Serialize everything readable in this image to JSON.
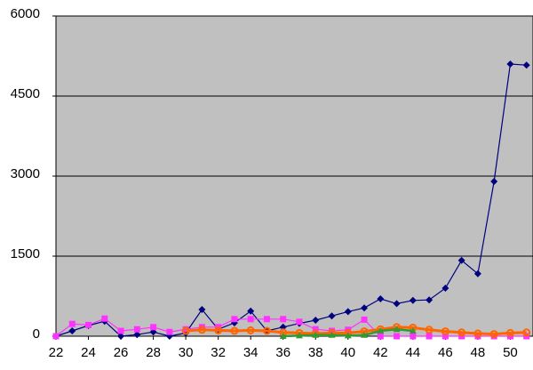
{
  "chart_data": {
    "type": "line",
    "x": [
      22,
      23,
      24,
      25,
      26,
      27,
      28,
      29,
      30,
      31,
      32,
      33,
      34,
      35,
      36,
      37,
      38,
      39,
      40,
      41,
      42,
      43,
      44,
      45,
      46,
      47,
      48,
      49,
      50,
      51
    ],
    "xlim": [
      22,
      51.4
    ],
    "xticks": [
      22,
      24,
      26,
      28,
      30,
      32,
      34,
      36,
      38,
      40,
      42,
      44,
      46,
      48,
      50
    ],
    "ylim": [
      0,
      6000
    ],
    "yticks": [
      0,
      1500,
      3000,
      4500,
      6000
    ],
    "grid": true,
    "background": "#c0c0c0",
    "series": [
      {
        "color": "#000080",
        "marker": "diamond",
        "values": [
          0,
          100,
          200,
          280,
          0,
          30,
          80,
          0,
          60,
          500,
          130,
          250,
          470,
          100,
          170,
          240,
          300,
          380,
          460,
          530,
          700,
          610,
          670,
          680,
          900,
          1420,
          1170,
          2900,
          5100,
          5080
        ]
      },
      {
        "color": "#ff33ff",
        "marker": "square",
        "values": [
          0,
          230,
          210,
          330,
          100,
          130,
          170,
          80,
          130,
          170,
          170,
          320,
          320,
          320,
          320,
          270,
          130,
          100,
          120,
          310,
          0,
          0,
          0,
          0,
          0,
          0,
          0,
          0,
          0,
          0
        ]
      },
      {
        "color": "#ff6600",
        "marker": "circle",
        "values": [
          null,
          null,
          null,
          null,
          null,
          null,
          null,
          null,
          100,
          120,
          110,
          100,
          110,
          100,
          70,
          60,
          50,
          60,
          60,
          90,
          130,
          170,
          160,
          120,
          90,
          70,
          50,
          40,
          60,
          70
        ]
      },
      {
        "color": "#339933",
        "marker": "triangle",
        "values": [
          null,
          null,
          null,
          null,
          null,
          null,
          null,
          null,
          null,
          null,
          null,
          null,
          null,
          null,
          0,
          10,
          20,
          20,
          10,
          20,
          100,
          130,
          100,
          null,
          null,
          null,
          null,
          null,
          null,
          null
        ]
      }
    ]
  }
}
